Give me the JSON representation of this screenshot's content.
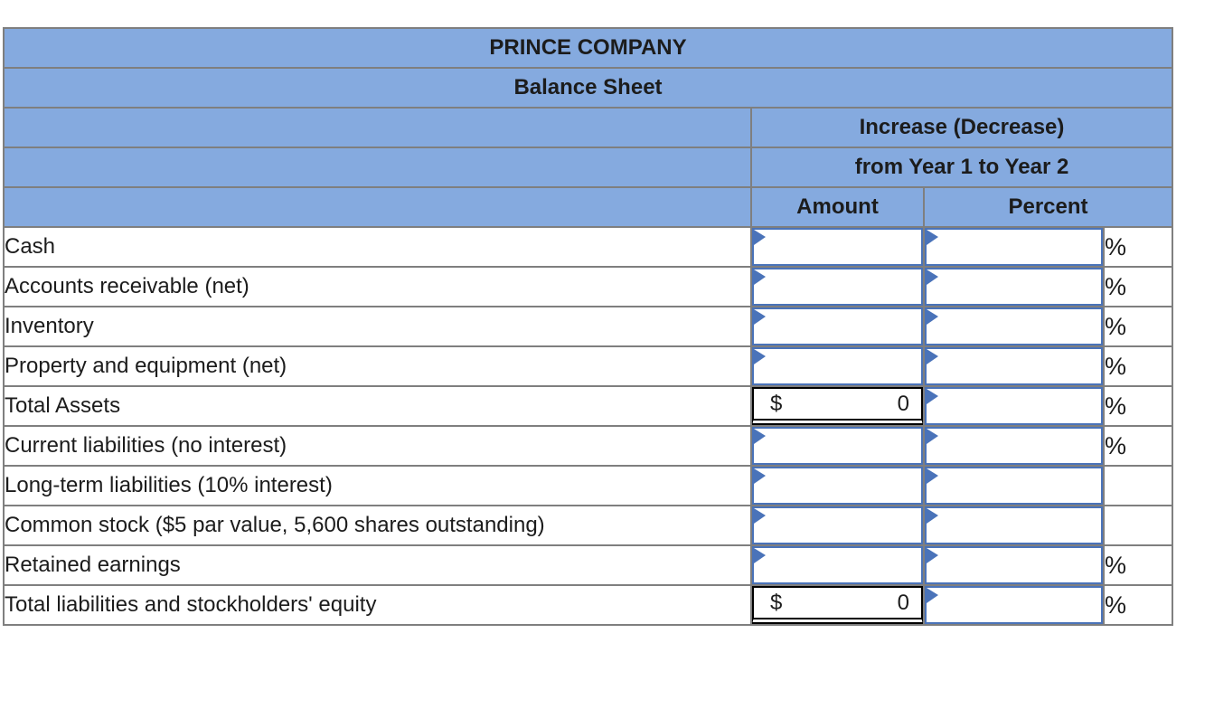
{
  "table": {
    "title": "PRINCE COMPANY",
    "subtitle": "Balance Sheet",
    "group_header_line1": "Increase (Decrease)",
    "group_header_line2": "from Year 1 to Year 2",
    "columns": {
      "amount": "Amount",
      "percent": "Percent"
    },
    "percent_sign": "%",
    "rows": [
      {
        "label": "Cash",
        "amount": {
          "type": "input"
        },
        "percent": {
          "type": "input"
        },
        "show_percent_sign": true
      },
      {
        "label": "Accounts receivable (net)",
        "amount": {
          "type": "input"
        },
        "percent": {
          "type": "input"
        },
        "show_percent_sign": true
      },
      {
        "label": "Inventory",
        "amount": {
          "type": "input"
        },
        "percent": {
          "type": "input"
        },
        "show_percent_sign": true
      },
      {
        "label": "Property and equipment (net)",
        "amount": {
          "type": "input"
        },
        "percent": {
          "type": "input"
        },
        "show_percent_sign": true
      },
      {
        "label": "Total Assets",
        "amount": {
          "type": "total",
          "currency": "$",
          "value": "0"
        },
        "percent": {
          "type": "input"
        },
        "show_percent_sign": true
      },
      {
        "label": "Current liabilities (no interest)",
        "amount": {
          "type": "input"
        },
        "percent": {
          "type": "input"
        },
        "show_percent_sign": true
      },
      {
        "label": "Long-term liabilities (10% interest)",
        "amount": {
          "type": "input"
        },
        "percent": {
          "type": "input"
        },
        "show_percent_sign": false
      },
      {
        "label": "Common stock ($5 par value, 5,600 shares outstanding)",
        "amount": {
          "type": "input"
        },
        "percent": {
          "type": "input"
        },
        "show_percent_sign": false
      },
      {
        "label": "Retained earnings",
        "amount": {
          "type": "input"
        },
        "percent": {
          "type": "input"
        },
        "show_percent_sign": true
      },
      {
        "label": "Total liabilities and stockholders' equity",
        "amount": {
          "type": "total",
          "currency": "$",
          "value": "0"
        },
        "percent": {
          "type": "input"
        },
        "show_percent_sign": true
      }
    ]
  },
  "colors": {
    "header_bg": "#85AADF",
    "grid_border": "#7F7F7F",
    "input_border": "#4A73B9",
    "text": "#1C1C1C"
  }
}
